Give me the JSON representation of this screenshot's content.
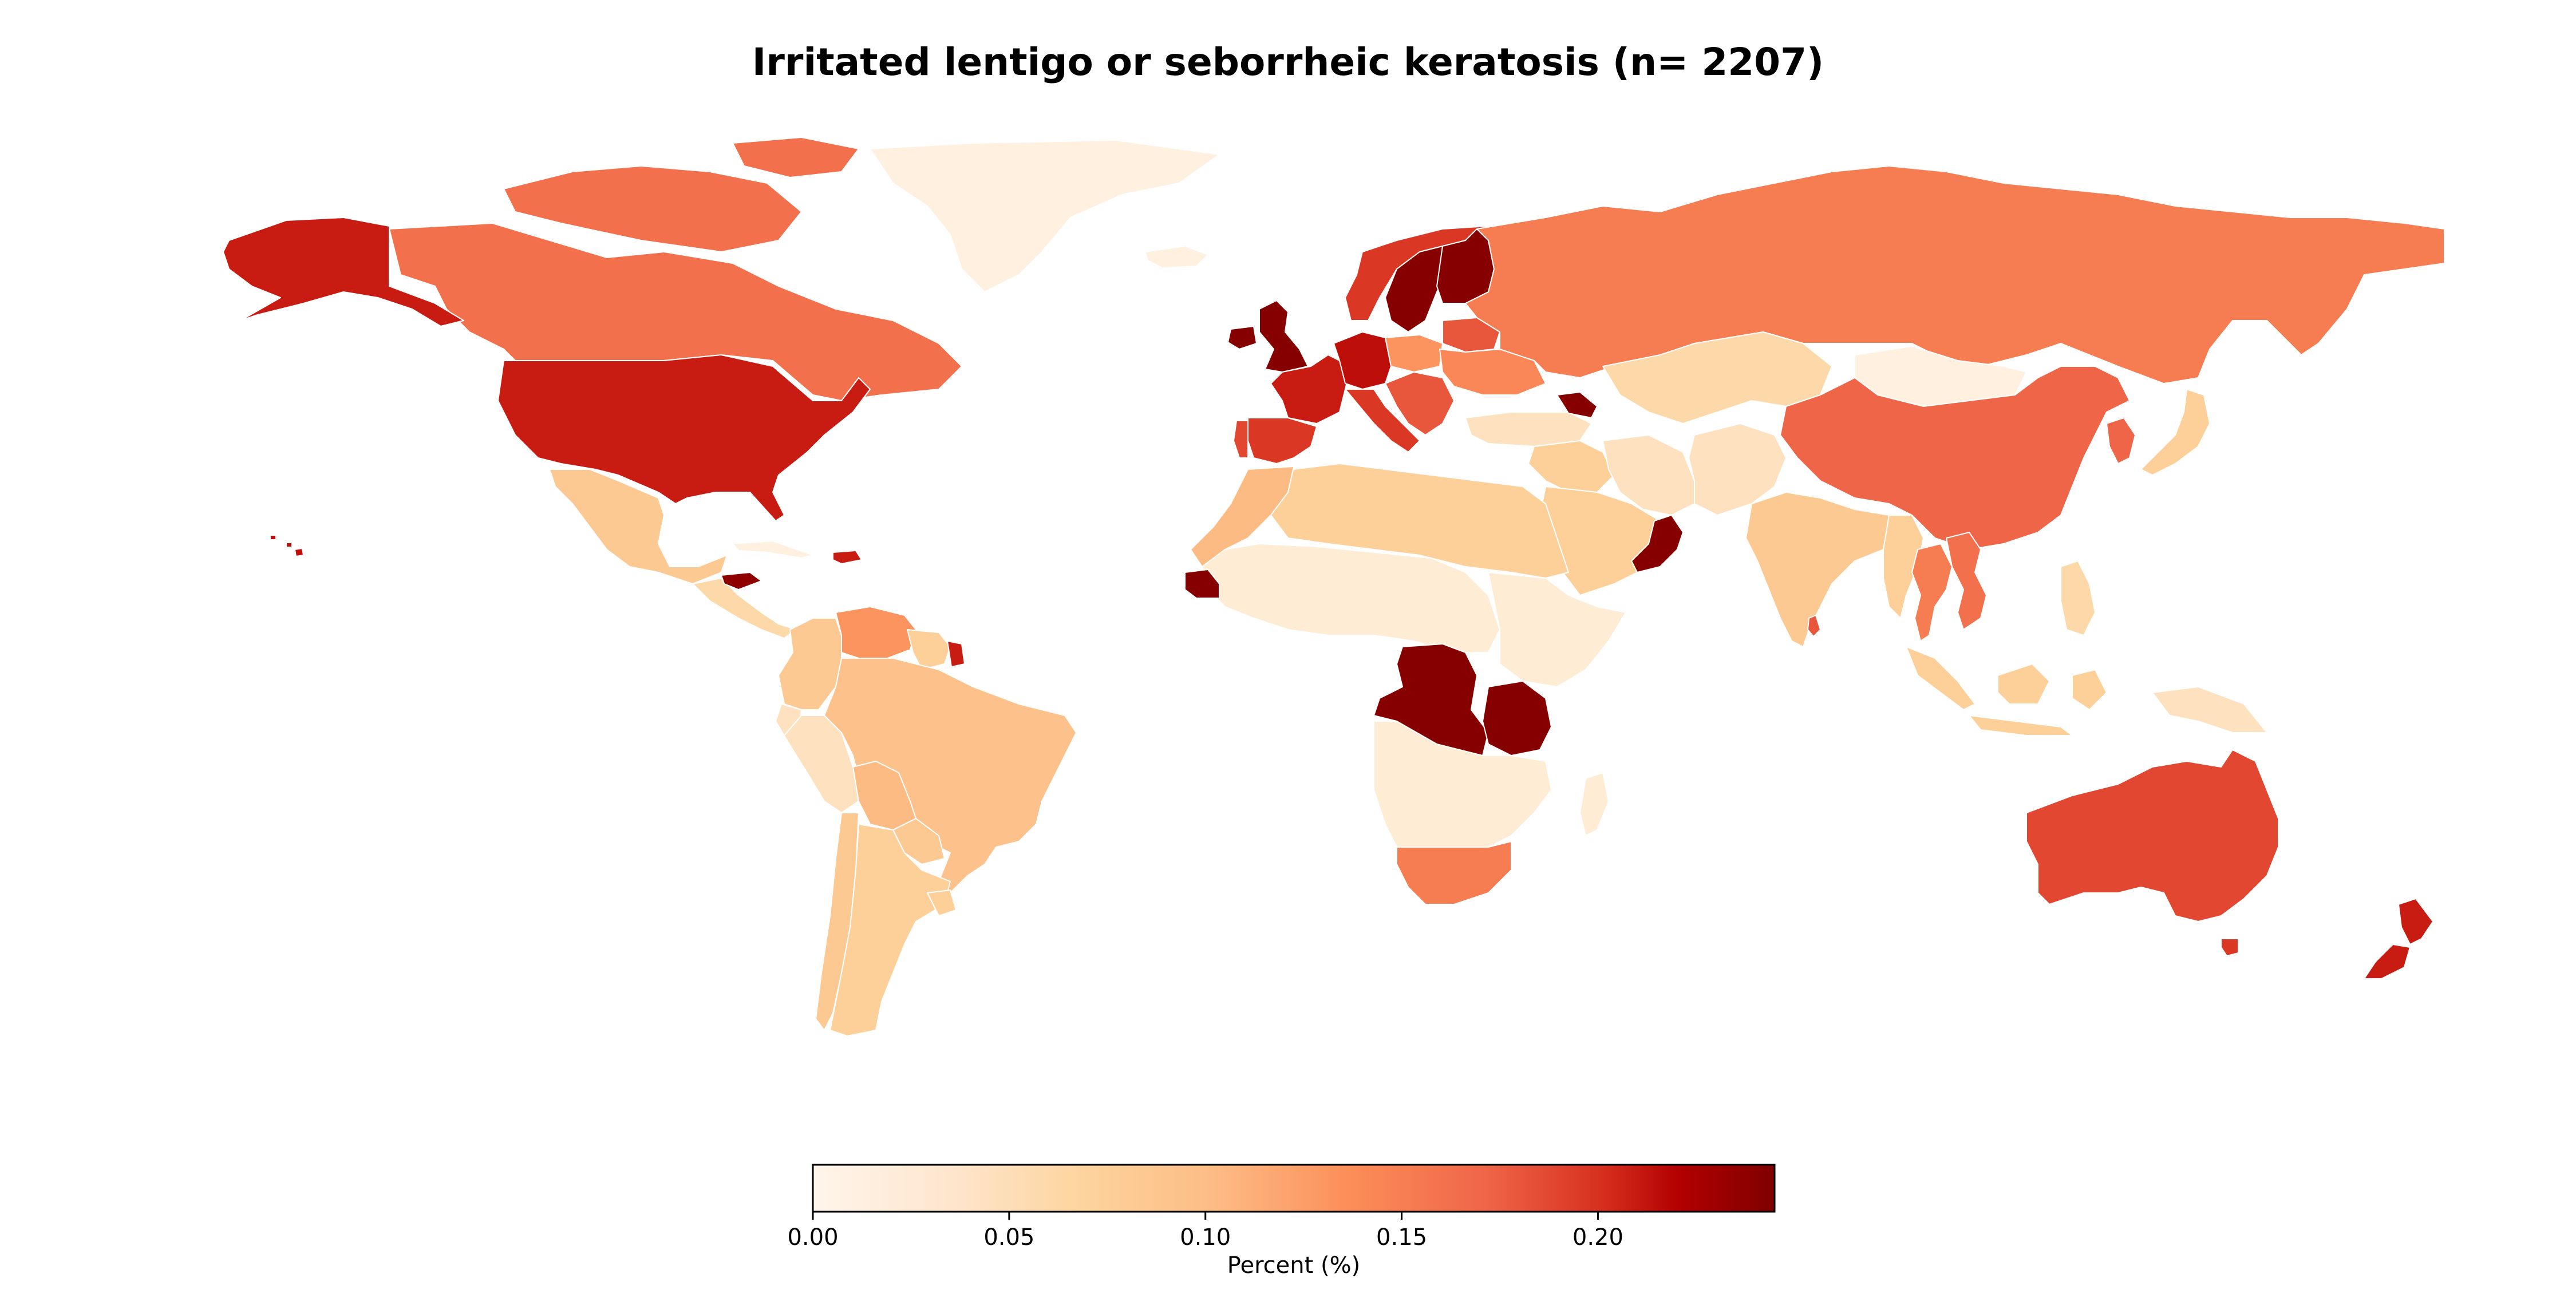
{
  "title": "Irritated lentigo or seborrheic keratosis (n= 2207)",
  "colorbar": {
    "label": "Percent (%)",
    "min": 0.0,
    "max": 0.245,
    "ticks": [
      "0.00",
      "0.05",
      "0.10",
      "0.15",
      "0.20"
    ],
    "tick_values": [
      0.0,
      0.05,
      0.1,
      0.15,
      0.2
    ],
    "colormap": [
      "#fff5eb",
      "#fdd49e",
      "#fdbb84",
      "#fc8d59",
      "#ef6548",
      "#d7301f",
      "#b30000",
      "#7f0000"
    ]
  },
  "regions": [
    {
      "id": "greenland",
      "value": 0.005
    },
    {
      "id": "canada",
      "value": 0.13
    },
    {
      "id": "alaska",
      "value": 0.19
    },
    {
      "id": "usa",
      "value": 0.19
    },
    {
      "id": "mexico",
      "value": 0.05
    },
    {
      "id": "central-america",
      "value": 0.03
    },
    {
      "id": "cuba",
      "value": 0.005
    },
    {
      "id": "jamaica",
      "value": 0.235
    },
    {
      "id": "dominican-republic",
      "value": 0.19
    },
    {
      "id": "hawaii",
      "value": 0.2
    },
    {
      "id": "colombia",
      "value": 0.05
    },
    {
      "id": "venezuela",
      "value": 0.1
    },
    {
      "id": "guyana",
      "value": 0.04
    },
    {
      "id": "french-guiana",
      "value": 0.19
    },
    {
      "id": "ecuador",
      "value": 0.02
    },
    {
      "id": "peru",
      "value": 0.02
    },
    {
      "id": "brazil",
      "value": 0.06
    },
    {
      "id": "bolivia",
      "value": 0.07
    },
    {
      "id": "paraguay",
      "value": 0.05
    },
    {
      "id": "chile",
      "value": 0.05
    },
    {
      "id": "argentina",
      "value": 0.04
    },
    {
      "id": "uruguay",
      "value": 0.04
    },
    {
      "id": "iceland",
      "value": 0.005
    },
    {
      "id": "uk",
      "value": 0.24
    },
    {
      "id": "ireland",
      "value": 0.24
    },
    {
      "id": "norway",
      "value": 0.17
    },
    {
      "id": "sweden",
      "value": 0.24
    },
    {
      "id": "finland",
      "value": 0.24
    },
    {
      "id": "france",
      "value": 0.19
    },
    {
      "id": "spain",
      "value": 0.17
    },
    {
      "id": "portugal",
      "value": 0.16
    },
    {
      "id": "germany",
      "value": 0.2
    },
    {
      "id": "poland",
      "value": 0.1
    },
    {
      "id": "italy",
      "value": 0.17
    },
    {
      "id": "balkans",
      "value": 0.15
    },
    {
      "id": "belarus",
      "value": 0.15
    },
    {
      "id": "ukraine",
      "value": 0.11
    },
    {
      "id": "turkey",
      "value": 0.02
    },
    {
      "id": "georgia",
      "value": 0.24
    },
    {
      "id": "russia",
      "value": 0.12
    },
    {
      "id": "kazakhstan",
      "value": 0.03
    },
    {
      "id": "mongolia",
      "value": 0.005
    },
    {
      "id": "china",
      "value": 0.14
    },
    {
      "id": "korea",
      "value": 0.14
    },
    {
      "id": "japan",
      "value": 0.04
    },
    {
      "id": "middle-east",
      "value": 0.04
    },
    {
      "id": "saudi-arabia",
      "value": 0.04
    },
    {
      "id": "iran",
      "value": 0.02
    },
    {
      "id": "afghanistan-pakistan",
      "value": 0.02
    },
    {
      "id": "oman",
      "value": 0.24
    },
    {
      "id": "india",
      "value": 0.05
    },
    {
      "id": "sri-lanka",
      "value": 0.15
    },
    {
      "id": "myanmar",
      "value": 0.04
    },
    {
      "id": "thailand",
      "value": 0.12
    },
    {
      "id": "vietnam",
      "value": 0.13
    },
    {
      "id": "philippines",
      "value": 0.03
    },
    {
      "id": "indonesia",
      "value": 0.04
    },
    {
      "id": "papua-new-guinea",
      "value": 0.02
    },
    {
      "id": "north-africa",
      "value": 0.04
    },
    {
      "id": "morocco",
      "value": 0.07
    },
    {
      "id": "west-africa",
      "value": 0.01
    },
    {
      "id": "senegal",
      "value": 0.24
    },
    {
      "id": "dr-congo",
      "value": 0.24
    },
    {
      "id": "tanzania",
      "value": 0.24
    },
    {
      "id": "east-africa",
      "value": 0.01
    },
    {
      "id": "southern-africa",
      "value": 0.01
    },
    {
      "id": "south-africa",
      "value": 0.12
    },
    {
      "id": "madagascar",
      "value": 0.01
    },
    {
      "id": "australia",
      "value": 0.16
    },
    {
      "id": "tasmania",
      "value": 0.17
    },
    {
      "id": "new-zealand",
      "value": 0.19
    }
  ]
}
